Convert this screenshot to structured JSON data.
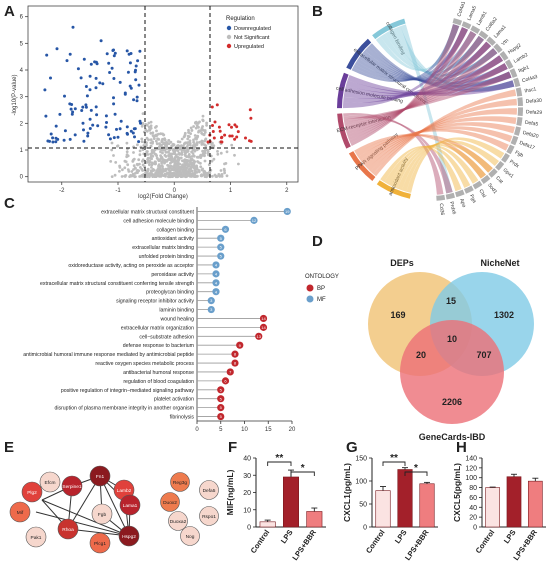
{
  "panels": {
    "A": {
      "letter": "A",
      "ylabel": "-log10(P-value)",
      "xlabel": "log2(Fold Change)",
      "x_ticks": [
        "-2",
        "-1",
        "0",
        "1",
        "2"
      ],
      "y_ticks": [
        "0",
        "1",
        "2",
        "3",
        "4",
        "5",
        "6"
      ],
      "legend_title": "Regulation",
      "legend": [
        {
          "label": "Downregulated",
          "color": "#2756a6"
        },
        {
          "label": "Not Significant",
          "color": "#bdbdbd"
        },
        {
          "label": "Upregulated",
          "color": "#d22c2c"
        }
      ]
    },
    "B": {
      "letter": "B",
      "terms": [
        {
          "label": "collagen binding",
          "color": "#85c8d9"
        },
        {
          "label": "extracellular matrix structural constituent",
          "color": "#3b4f9c"
        },
        {
          "label": "cell adhesion molecule binding",
          "color": "#6a3d9a"
        },
        {
          "label": "ECM-receptor interaction",
          "color": "#b04a6b"
        },
        {
          "label": "PPAR signaling pathway",
          "color": "#e8764a"
        },
        {
          "label": "antioxidant activity",
          "color": "#f0b13a"
        }
      ],
      "genes": [
        "Col4a1",
        "Lama5",
        "Lamb1",
        "Col6a2",
        "Lama1",
        "Vtn",
        "Hspg2",
        "Lamb2",
        "Itgb1",
        "Col4a3",
        "Ihsc1",
        "Defa30",
        "Defa29",
        "Defa5",
        "Defa20",
        "Defa17",
        "Fgb",
        "Prdx",
        "Gpx1",
        "Cat",
        "Sod1",
        "Ctsl",
        "Fga",
        "Apo",
        "Prdx6",
        "Cd36"
      ]
    },
    "C": {
      "letter": "C",
      "legend_title": "ONTOLOGY",
      "legend": [
        {
          "label": "BP",
          "color": "#c1272d"
        },
        {
          "label": "MF",
          "color": "#6a9fcb"
        }
      ],
      "x_ticks": [
        "0",
        "5",
        "10",
        "15",
        "20"
      ],
      "terms": [
        {
          "label": "extracellular matrix structural constituent",
          "value": 19,
          "ontology": "MF"
        },
        {
          "label": "cell adhesion molecule binding",
          "value": 12,
          "ontology": "MF"
        },
        {
          "label": "collagen binding",
          "value": 6,
          "ontology": "MF"
        },
        {
          "label": "antioxidant activity",
          "value": 5,
          "ontology": "MF"
        },
        {
          "label": "extracellular matrix binding",
          "value": 5,
          "ontology": "MF"
        },
        {
          "label": "unfolded protein binding",
          "value": 5,
          "ontology": "MF"
        },
        {
          "label": "oxidoreductase activity, acting on peroxide as acceptor",
          "value": 4,
          "ontology": "MF"
        },
        {
          "label": "peroxidase activity",
          "value": 4,
          "ontology": "MF"
        },
        {
          "label": "extracellular matrix structural constituent conferring tensile strength",
          "value": 4,
          "ontology": "MF"
        },
        {
          "label": "proteoglycan binding",
          "value": 4,
          "ontology": "MF"
        },
        {
          "label": "signaling receptor inhibitor activity",
          "value": 3,
          "ontology": "MF"
        },
        {
          "label": "laminin binding",
          "value": 3,
          "ontology": "MF"
        },
        {
          "label": "wound healing",
          "value": 14,
          "ontology": "BP"
        },
        {
          "label": "extracellular matrix organization",
          "value": 14,
          "ontology": "BP"
        },
        {
          "label": "cell−substrate adhesion",
          "value": 13,
          "ontology": "BP"
        },
        {
          "label": "defense response to bacterium",
          "value": 9,
          "ontology": "BP"
        },
        {
          "label": "antimicrobial humoral immune response mediated by antimicrobial peptide",
          "value": 8,
          "ontology": "BP"
        },
        {
          "label": "reactive oxygen species metabolic process",
          "value": 8,
          "ontology": "BP"
        },
        {
          "label": "antibacterial humoral response",
          "value": 7,
          "ontology": "BP"
        },
        {
          "label": "regulation of blood coagulation",
          "value": 6,
          "ontology": "BP"
        },
        {
          "label": "positive regulation of integrin−mediated signaling pathway",
          "value": 5,
          "ontology": "BP"
        },
        {
          "label": "platelet activation",
          "value": 5,
          "ontology": "BP"
        },
        {
          "label": "disruption of plasma membrane integrity in another organism",
          "value": 5,
          "ontology": "BP"
        },
        {
          "label": "fibrinolysis",
          "value": 5,
          "ontology": "BP"
        }
      ]
    },
    "D": {
      "letter": "D",
      "sets": [
        {
          "label": "DEPs",
          "color": "#f1c57b"
        },
        {
          "label": "NicheNet",
          "color": "#7fcbe6"
        },
        {
          "label": "GeneCards-IBD",
          "color": "#ec6f77"
        }
      ],
      "counts": {
        "deps_only": "169",
        "niche_only": "1302",
        "gene_only": "2206",
        "deps_niche": "15",
        "deps_gene": "20",
        "niche_gene": "707",
        "all": "10"
      }
    },
    "E": {
      "letter": "E",
      "nodes": [
        {
          "label": "Serpine1",
          "color": "#b8232c"
        },
        {
          "label": "Fn1",
          "color": "#8b1a1f"
        },
        {
          "label": "Efcm",
          "color": "#f6d7cd"
        },
        {
          "label": "Plg2",
          "color": "#e0413b"
        },
        {
          "label": "Lamb2",
          "color": "#e0413b"
        },
        {
          "label": "Mif",
          "color": "#ee6a4b"
        },
        {
          "label": "Lama1",
          "color": "#b8232c"
        },
        {
          "label": "Pak1",
          "color": "#f6d7cd"
        },
        {
          "label": "Hspg2",
          "color": "#8b1a1f"
        },
        {
          "label": "Rhoa",
          "color": "#c8332f"
        },
        {
          "label": "Fgb",
          "color": "#f6d7cd"
        },
        {
          "label": "Plcg1",
          "color": "#ee6a4b"
        },
        {
          "label": "Reg3g",
          "color": "#ee7b4e"
        },
        {
          "label": "Defa5",
          "color": "#f6d7cd"
        },
        {
          "label": "Duox2",
          "color": "#ee7b4e"
        },
        {
          "label": "Duoxa2",
          "color": "#f6d7cd"
        },
        {
          "label": "Rspo1",
          "color": "#f6d7cd"
        },
        {
          "label": "Nog",
          "color": "#f6d7cd"
        }
      ]
    },
    "F": {
      "letter": "F",
      "ylabel": "MIF(ng/mL)",
      "categories": [
        "Control",
        "LPS",
        "LPS+BBR"
      ],
      "values": [
        3,
        29,
        9
      ],
      "errors": [
        1,
        4,
        2
      ],
      "ylim": [
        0,
        40
      ],
      "y_ticks": [
        "0",
        "10",
        "20",
        "30",
        "40"
      ],
      "sig": [
        "**",
        "*"
      ]
    },
    "G": {
      "letter": "G",
      "ylabel": "CXCL1(pg/mL)",
      "categories": [
        "Control",
        "LPS",
        "LPS+BBR"
      ],
      "values": [
        79,
        125,
        94
      ],
      "errors": [
        9,
        4,
        3
      ],
      "ylim": [
        0,
        150
      ],
      "y_ticks": [
        "0",
        "50",
        "100",
        "150"
      ],
      "sig": [
        "**",
        "*"
      ]
    },
    "H": {
      "letter": "H",
      "ylabel": "CXCL5(pg/mL)",
      "categories": [
        "Control",
        "LPS",
        "LPS+BBR"
      ],
      "values": [
        80,
        102,
        93
      ],
      "errors": [
        1,
        5,
        6
      ],
      "ylim": [
        0,
        140
      ],
      "y_ticks": [
        "0",
        "20",
        "40",
        "60",
        "80",
        "100",
        "120",
        "140"
      ]
    }
  },
  "colors": {
    "bar_control": "#fbe3e2",
    "bar_lps": "#a3202a",
    "bar_bbr": "#ef7d7f"
  }
}
